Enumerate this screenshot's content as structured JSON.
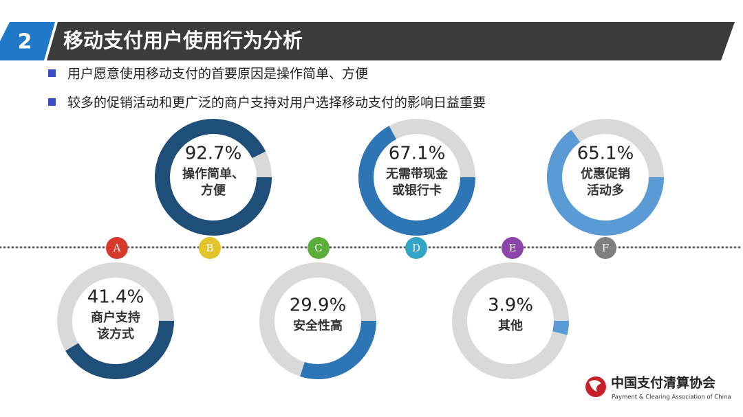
{
  "header": {
    "number": "2",
    "title": "移动支付用户使用行为分析"
  },
  "bullets": [
    "用户愿意使用移动支付的首要原因是操作简单、方便",
    "较多的促销活动和更广泛的商户支持对用户选择移动支付的影响日益重要"
  ],
  "markers": [
    {
      "label": "A",
      "color": "#d63a2c"
    },
    {
      "label": "B",
      "color": "#e3c52b"
    },
    {
      "label": "C",
      "color": "#5bae3a"
    },
    {
      "label": "D",
      "color": "#33a4c6"
    },
    {
      "label": "E",
      "color": "#8b44a8"
    },
    {
      "label": "F",
      "color": "#7f7f7f"
    }
  ],
  "logo": {
    "name": "中国支付清算协会",
    "subtitle": "Payment & Clearing Association of China"
  },
  "chart_data": [
    {
      "type": "donut",
      "values": [
        92.7
      ],
      "value_labels": [
        "92.7%"
      ],
      "label_lines": [
        "操作简单、",
        "方便"
      ],
      "color": "#1f4e79"
    },
    {
      "type": "donut",
      "values": [
        67.1
      ],
      "value_labels": [
        "67.1%"
      ],
      "label_lines": [
        "无需带现金",
        "或银行卡"
      ],
      "color": "#2e75b6"
    },
    {
      "type": "donut",
      "values": [
        65.1
      ],
      "value_labels": [
        "65.1%"
      ],
      "label_lines": [
        "优惠促销",
        "活动多"
      ],
      "color": "#5b9bd5"
    },
    {
      "type": "donut",
      "values": [
        41.4
      ],
      "value_labels": [
        "41.4%"
      ],
      "label_lines": [
        "商户支持",
        "该方式"
      ],
      "color": "#1f4e79"
    },
    {
      "type": "donut",
      "values": [
        29.9
      ],
      "value_labels": [
        "29.9%"
      ],
      "label_lines": [
        "安全性高"
      ],
      "color": "#2e75b6"
    },
    {
      "type": "donut",
      "values": [
        3.9
      ],
      "value_labels": [
        "3.9%"
      ],
      "label_lines": [
        "其他"
      ],
      "color": "#5b9bd5"
    }
  ]
}
